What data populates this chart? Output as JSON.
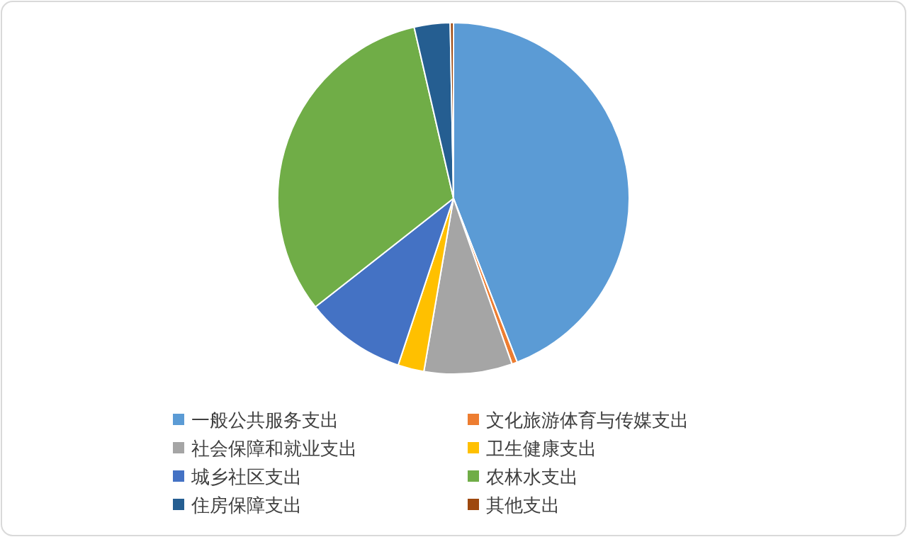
{
  "chart_data": {
    "type": "pie",
    "categories": [
      "一般公共服务支出",
      "文化旅游体育与传媒支出",
      "社会保障和就业支出",
      "卫生健康支出",
      "城乡社区支出",
      "农林水支出",
      "住房保障支出",
      "其他支出"
    ],
    "values": [
      44.1,
      0.5,
      8.1,
      2.4,
      9.3,
      32.0,
      3.3,
      0.3
    ],
    "colors": [
      "#5b9bd5",
      "#ed7d31",
      "#a5a5a5",
      "#ffc000",
      "#4472c4",
      "#70ad47",
      "#255e91",
      "#9e480e"
    ],
    "legend": "bottom"
  }
}
